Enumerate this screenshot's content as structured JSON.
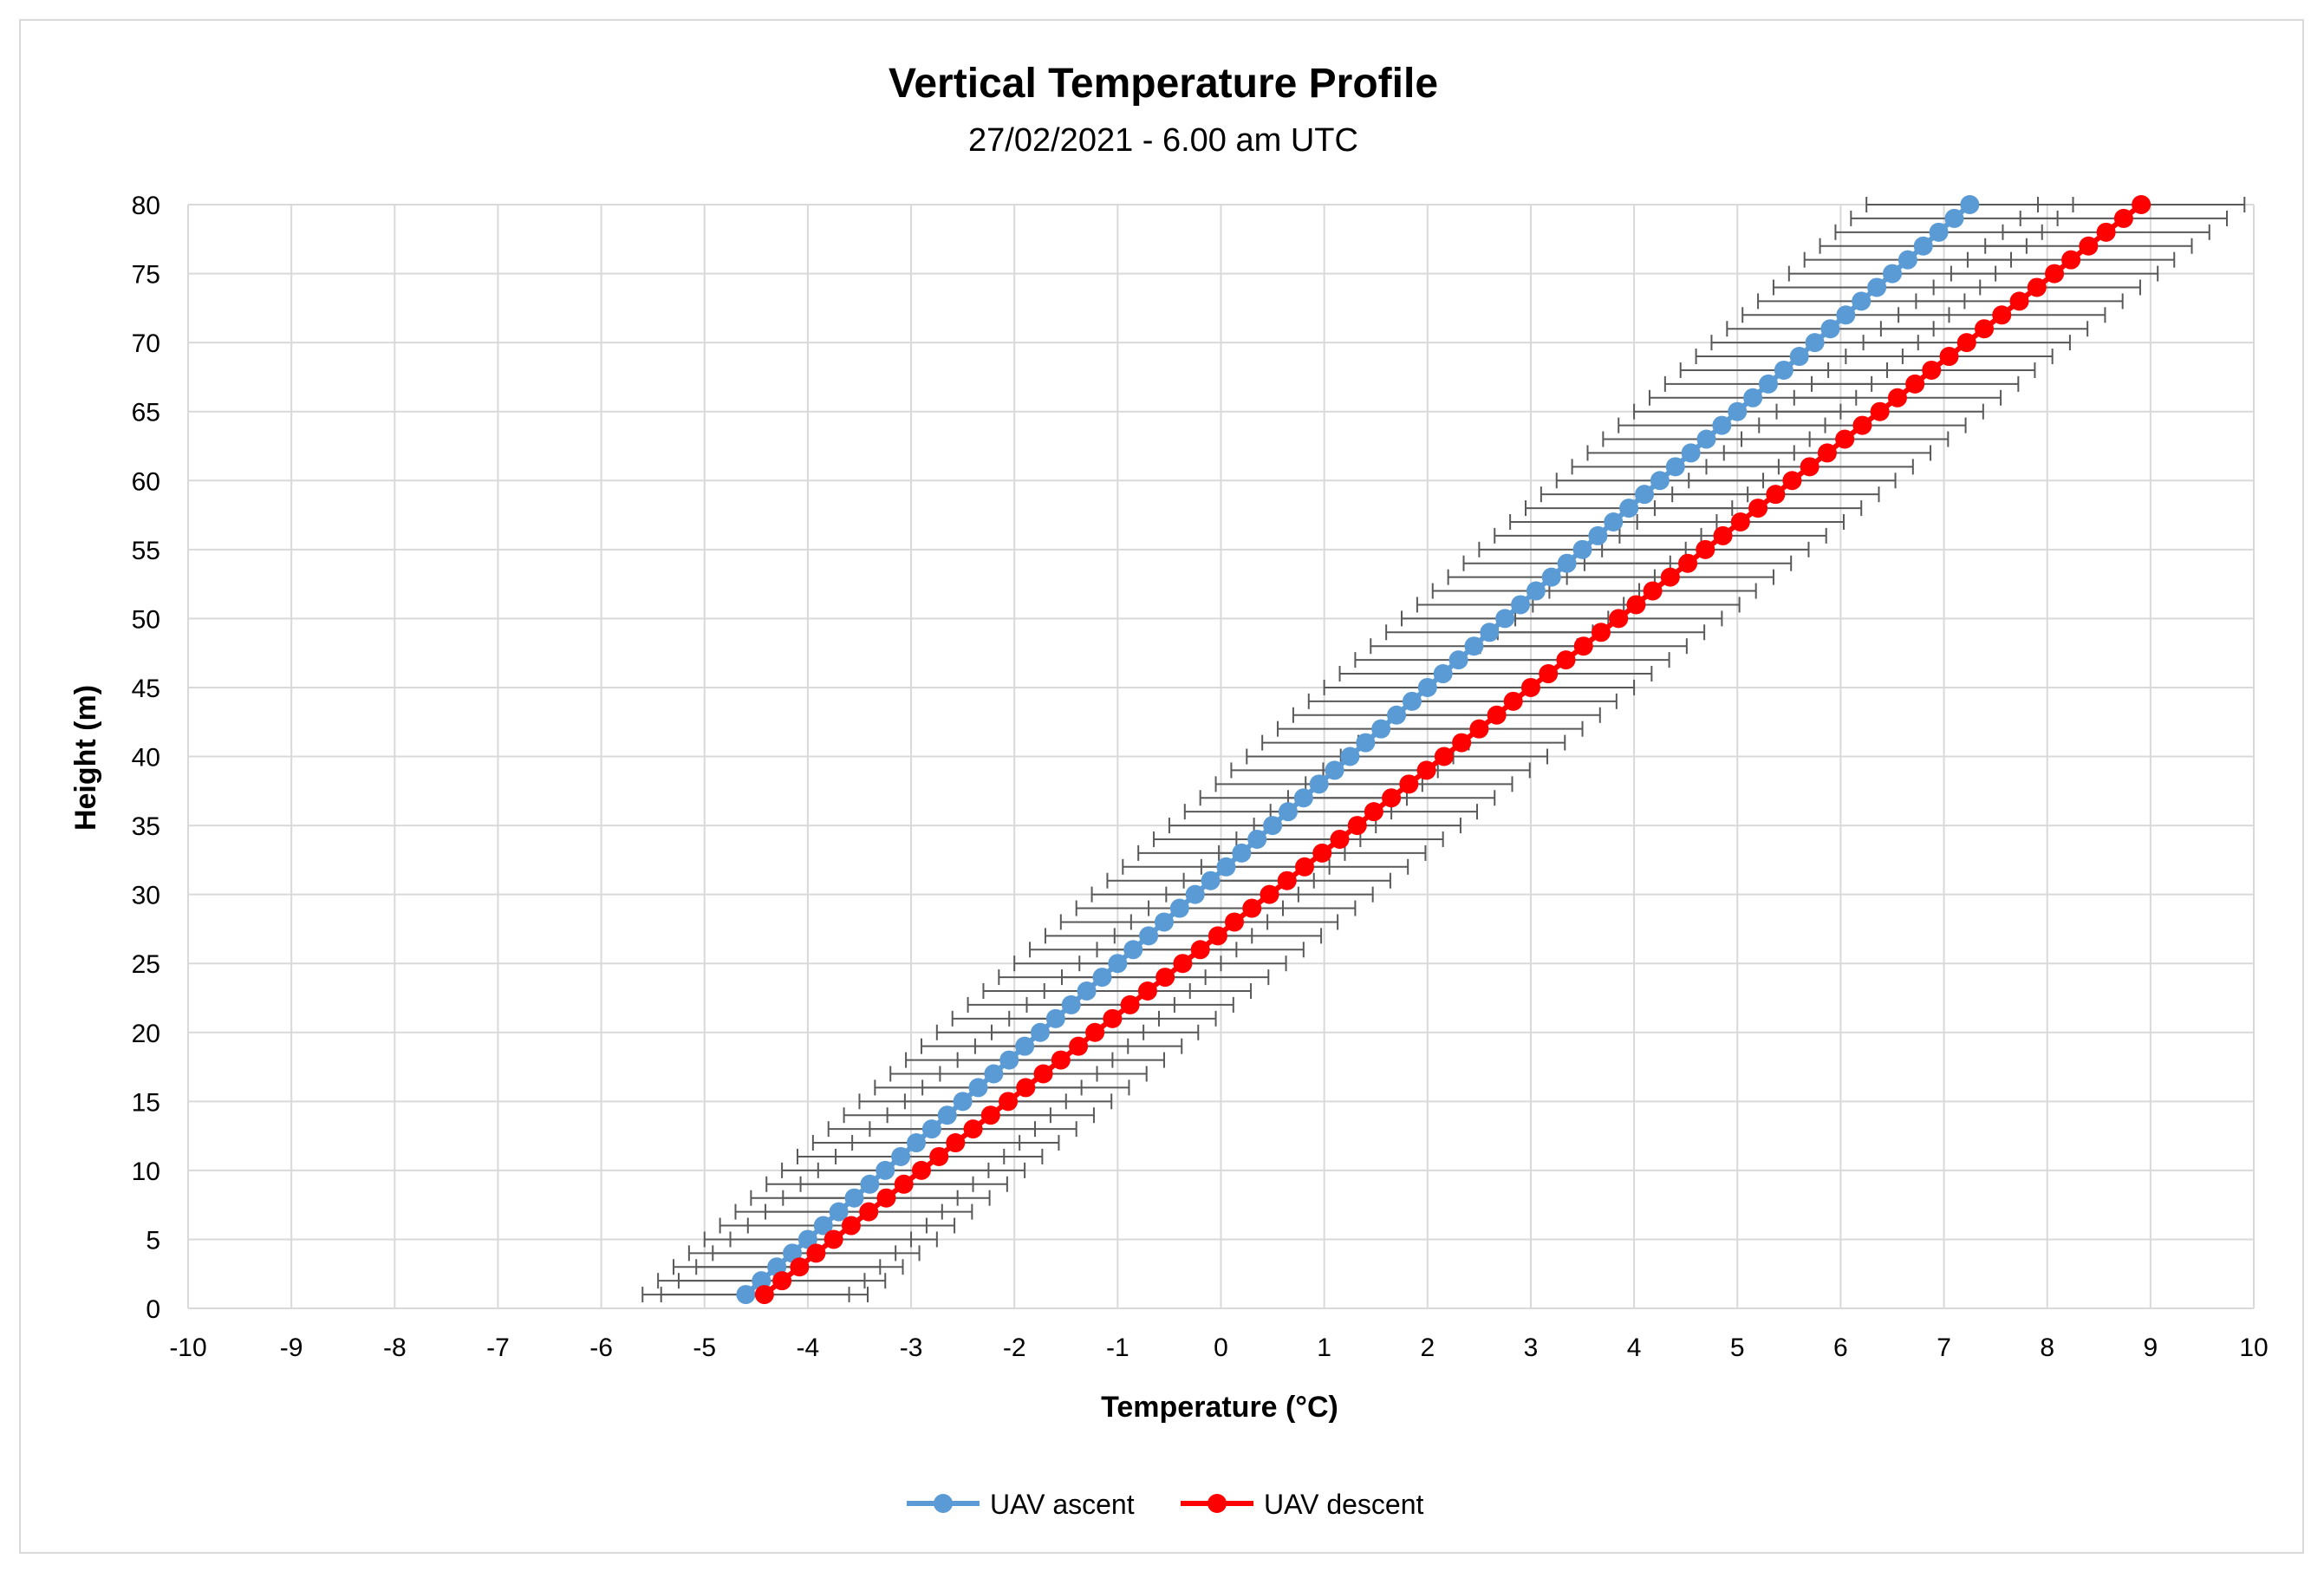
{
  "chart_data": {
    "type": "scatter",
    "title": "Vertical Temperature Profile",
    "subtitle": "27/02/2021  - 6.00 am UTC",
    "xlabel": "Temperature (°C)",
    "ylabel": "Height  (m)",
    "xlim": [
      -10,
      10
    ],
    "ylim": [
      0,
      80
    ],
    "x_ticks": [
      "-10",
      "-9",
      "-8",
      "-7",
      "-6",
      "-5",
      "-4",
      "-3",
      "-2",
      "-1",
      "0",
      "1",
      "2",
      "3",
      "4",
      "5",
      "6",
      "7",
      "8",
      "9",
      "10"
    ],
    "y_ticks": [
      "0",
      "5",
      "10",
      "15",
      "20",
      "25",
      "30",
      "35",
      "40",
      "45",
      "50",
      "55",
      "60",
      "65",
      "70",
      "75",
      "80"
    ],
    "grid": true,
    "legend_position": "bottom",
    "error_bars": "horizontal",
    "series": [
      {
        "name": "UAV ascent",
        "color": "#5b9bd5",
        "heights": [
          1,
          2,
          3,
          4,
          5,
          6,
          7,
          8,
          9,
          10,
          11,
          12,
          13,
          14,
          15,
          16,
          17,
          18,
          19,
          20,
          21,
          22,
          23,
          24,
          25,
          26,
          27,
          28,
          29,
          30,
          31,
          32,
          33,
          34,
          35,
          36,
          37,
          38,
          39,
          40,
          41,
          42,
          43,
          44,
          45,
          46,
          47,
          48,
          49,
          50,
          51,
          52,
          53,
          54,
          55,
          56,
          57,
          58,
          59,
          60,
          61,
          62,
          63,
          64,
          65,
          66,
          67,
          68,
          69,
          70,
          71,
          72,
          73,
          74,
          75,
          76,
          77,
          78,
          79,
          80
        ],
        "temperatures": [
          -4.6,
          -4.45,
          -4.3,
          -4.15,
          -4.0,
          -3.85,
          -3.7,
          -3.55,
          -3.4,
          -3.25,
          -3.1,
          -2.95,
          -2.8,
          -2.65,
          -2.5,
          -2.35,
          -2.2,
          -2.05,
          -1.9,
          -1.75,
          -1.6,
          -1.45,
          -1.3,
          -1.15,
          -1.0,
          -0.85,
          -0.7,
          -0.55,
          -0.4,
          -0.25,
          -0.1,
          0.05,
          0.2,
          0.35,
          0.5,
          0.65,
          0.8,
          0.95,
          1.1,
          1.25,
          1.4,
          1.55,
          1.7,
          1.85,
          2.0,
          2.15,
          2.3,
          2.45,
          2.6,
          2.75,
          2.9,
          3.05,
          3.2,
          3.35,
          3.5,
          3.65,
          3.8,
          3.95,
          4.1,
          4.25,
          4.4,
          4.55,
          4.7,
          4.85,
          5.0,
          5.15,
          5.3,
          5.45,
          5.6,
          5.75,
          5.9,
          6.05,
          6.2,
          6.35,
          6.5,
          6.65,
          6.8,
          6.95,
          7.1,
          7.25
        ],
        "errors": [
          1.0,
          1.0,
          1.0,
          1.0,
          1.0,
          1.0,
          1.0,
          1.0,
          1.0,
          1.0,
          1.0,
          1.0,
          1.0,
          1.0,
          1.0,
          1.0,
          1.0,
          1.0,
          1.0,
          1.0,
          1.0,
          1.0,
          1.0,
          1.0,
          1.0,
          1.0,
          1.0,
          1.0,
          1.0,
          1.0,
          1.0,
          1.0,
          1.0,
          1.0,
          1.0,
          1.0,
          1.0,
          1.0,
          1.0,
          1.0,
          1.0,
          1.0,
          1.0,
          1.0,
          1.0,
          1.0,
          1.0,
          1.0,
          1.0,
          1.0,
          1.0,
          1.0,
          1.0,
          1.0,
          1.0,
          1.0,
          1.0,
          1.0,
          1.0,
          1.0,
          1.0,
          1.0,
          1.0,
          1.0,
          1.0,
          1.0,
          1.0,
          1.0,
          1.0,
          1.0,
          1.0,
          1.0,
          1.0,
          1.0,
          1.0,
          1.0,
          1.0,
          1.0,
          1.0,
          1.0
        ]
      },
      {
        "name": "UAV descent",
        "color": "#ff0000",
        "heights": [
          1,
          2,
          3,
          4,
          5,
          6,
          7,
          8,
          9,
          10,
          11,
          12,
          13,
          14,
          15,
          16,
          17,
          18,
          19,
          20,
          21,
          22,
          23,
          24,
          25,
          26,
          27,
          28,
          29,
          30,
          31,
          32,
          33,
          34,
          35,
          36,
          37,
          38,
          39,
          40,
          41,
          42,
          43,
          44,
          45,
          46,
          47,
          48,
          49,
          50,
          51,
          52,
          53,
          54,
          55,
          56,
          57,
          58,
          59,
          60,
          61,
          62,
          63,
          64,
          65,
          66,
          67,
          68,
          69,
          70,
          71,
          72,
          73,
          74,
          75,
          76,
          77,
          78,
          79,
          80
        ],
        "temperatures": [
          -4.42,
          -4.25,
          -4.08,
          -3.92,
          -3.75,
          -3.58,
          -3.41,
          -3.24,
          -3.07,
          -2.9,
          -2.73,
          -2.57,
          -2.4,
          -2.23,
          -2.06,
          -1.89,
          -1.72,
          -1.55,
          -1.38,
          -1.22,
          -1.05,
          -0.88,
          -0.71,
          -0.54,
          -0.37,
          -0.2,
          -0.03,
          0.13,
          0.3,
          0.47,
          0.64,
          0.81,
          0.98,
          1.15,
          1.32,
          1.48,
          1.65,
          1.82,
          1.99,
          2.16,
          2.33,
          2.5,
          2.67,
          2.83,
          3.0,
          3.17,
          3.34,
          3.51,
          3.68,
          3.85,
          4.02,
          4.18,
          4.35,
          4.52,
          4.69,
          4.86,
          5.03,
          5.2,
          5.37,
          5.53,
          5.7,
          5.87,
          6.04,
          6.21,
          6.38,
          6.55,
          6.72,
          6.88,
          7.05,
          7.22,
          7.39,
          7.56,
          7.73,
          7.9,
          8.07,
          8.23,
          8.4,
          8.57,
          8.74,
          8.91
        ],
        "errors": [
          1.0,
          1.0,
          1.0,
          1.0,
          1.0,
          1.0,
          1.0,
          1.0,
          1.0,
          1.0,
          1.0,
          1.0,
          1.0,
          1.0,
          1.0,
          1.0,
          1.0,
          1.0,
          1.0,
          1.0,
          1.0,
          1.0,
          1.0,
          1.0,
          1.0,
          1.0,
          1.0,
          1.0,
          1.0,
          1.0,
          1.0,
          1.0,
          1.0,
          1.0,
          1.0,
          1.0,
          1.0,
          1.0,
          1.0,
          1.0,
          1.0,
          1.0,
          1.0,
          1.0,
          1.0,
          1.0,
          1.0,
          1.0,
          1.0,
          1.0,
          1.0,
          1.0,
          1.0,
          1.0,
          1.0,
          1.0,
          1.0,
          1.0,
          1.0,
          1.0,
          1.0,
          1.0,
          1.0,
          1.0,
          1.0,
          1.0,
          1.0,
          1.0,
          1.0,
          1.0,
          1.0,
          1.0,
          1.0,
          1.0,
          1.0,
          1.0,
          1.0,
          1.0,
          1.0,
          1.0
        ]
      }
    ]
  }
}
